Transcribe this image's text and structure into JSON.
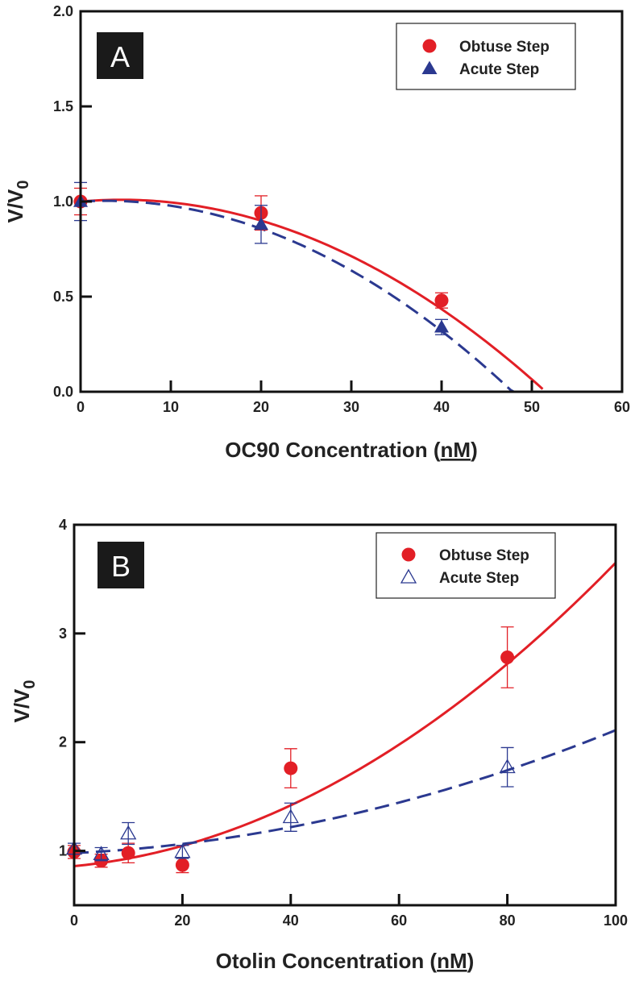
{
  "colors": {
    "obtuse": "#e21f26",
    "acute": "#2b3990",
    "axis": "#111111",
    "panel_label_bg": "#1a1a1a"
  },
  "chart_data": [
    {
      "type": "scatter",
      "panel_label": "A",
      "xlabel": "OC90 Concentration (nM)",
      "xlabel_main": "OC90 Concentration (",
      "xlabel_unit": "nM",
      "xlabel_close": ")",
      "ylabel": "V/V",
      "ylabel_sub": "0",
      "xlim": [
        0,
        60
      ],
      "ylim": [
        0,
        2
      ],
      "x_ticks": [
        0,
        10,
        20,
        30,
        40,
        50,
        60
      ],
      "y_ticks": [
        0,
        0.5,
        1,
        1.5,
        2
      ],
      "x_tick_labels": [
        "0",
        "10",
        "20",
        "30",
        "40",
        "50",
        "60"
      ],
      "y_tick_labels": [
        "0.0",
        "0.5",
        "1.0",
        "1.5",
        "2.0"
      ],
      "legend": {
        "position": "top-right"
      },
      "series": [
        {
          "name": "Obtuse Step",
          "marker": "filled-circle",
          "color_key": "obtuse",
          "fit": {
            "style": "solid",
            "model": "quadratic",
            "coef": [
              1.0,
              0.0041,
              -0.000456
            ],
            "x_range": [
              0,
              51.2
            ]
          },
          "points": [
            {
              "x": 0,
              "y": 1.0,
              "err": 0.07
            },
            {
              "x": 20,
              "y": 0.94,
              "err": 0.09
            },
            {
              "x": 40,
              "y": 0.48,
              "err": 0.04
            }
          ]
        },
        {
          "name": "Acute Step",
          "marker": "filled-triangle",
          "color_key": "acute",
          "fit": {
            "style": "dashed",
            "model": "quadratic",
            "coef": [
              1.0,
              0.0027,
              -0.000493
            ],
            "x_range": [
              0,
              48
            ]
          },
          "points": [
            {
              "x": 0,
              "y": 1.0,
              "err": 0.1
            },
            {
              "x": 20,
              "y": 0.88,
              "err": 0.1
            },
            {
              "x": 40,
              "y": 0.34,
              "err": 0.04
            }
          ]
        }
      ]
    },
    {
      "type": "scatter",
      "panel_label": "B",
      "xlabel": "Otolin Concentration (nM)",
      "xlabel_main": "Otolin Concentration (",
      "xlabel_unit": "nM",
      "xlabel_close": ")",
      "ylabel": "V/V",
      "ylabel_sub": "0",
      "xlim": [
        0,
        100
      ],
      "ylim": [
        0.5,
        4
      ],
      "x_ticks": [
        0,
        20,
        40,
        60,
        80,
        100
      ],
      "y_ticks": [
        1,
        2,
        3,
        4
      ],
      "x_tick_labels": [
        "0",
        "20",
        "40",
        "60",
        "80",
        "100"
      ],
      "y_tick_labels": [
        "1",
        "2",
        "3",
        "4"
      ],
      "legend": {
        "position": "top-right"
      },
      "series": [
        {
          "name": "Obtuse Step",
          "marker": "filled-circle",
          "color_key": "obtuse",
          "fit": {
            "style": "solid",
            "model": "quadratic",
            "coef": [
              0.86,
              0.0047,
              0.000232
            ],
            "x_range": [
              0,
              100
            ]
          },
          "points": [
            {
              "x": 0,
              "y": 0.99,
              "err": 0.06
            },
            {
              "x": 5,
              "y": 0.91,
              "err": 0.06
            },
            {
              "x": 10,
              "y": 0.98,
              "err": 0.09
            },
            {
              "x": 20,
              "y": 0.87,
              "err": 0.07
            },
            {
              "x": 40,
              "y": 1.76,
              "err": 0.18
            },
            {
              "x": 80,
              "y": 2.78,
              "err": 0.28
            }
          ]
        },
        {
          "name": "Acute Step",
          "marker": "open-triangle",
          "color_key": "acute",
          "fit": {
            "style": "dashed",
            "model": "quadratic",
            "coef": [
              0.98,
              0.0024,
              8.9e-05
            ],
            "x_range": [
              0,
              100
            ]
          },
          "points": [
            {
              "x": 0,
              "y": 1.02,
              "err": 0.05
            },
            {
              "x": 5,
              "y": 0.97,
              "err": 0.06
            },
            {
              "x": 10,
              "y": 1.16,
              "err": 0.1
            },
            {
              "x": 20,
              "y": 0.99,
              "err": 0.06
            },
            {
              "x": 40,
              "y": 1.31,
              "err": 0.13
            },
            {
              "x": 80,
              "y": 1.77,
              "err": 0.18
            }
          ]
        }
      ]
    }
  ]
}
